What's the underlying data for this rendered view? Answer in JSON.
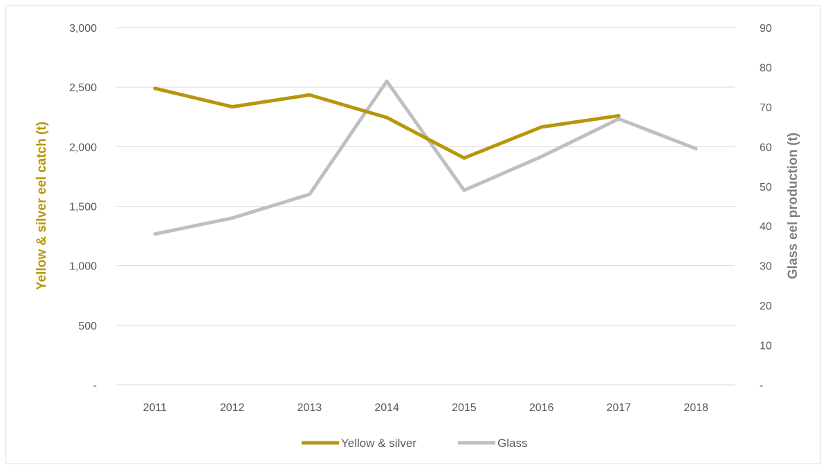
{
  "chart_data": {
    "type": "line",
    "categories": [
      "2011",
      "2012",
      "2013",
      "2014",
      "2015",
      "2016",
      "2017",
      "2018"
    ],
    "series": [
      {
        "name": "Yellow & silver",
        "axis": "left",
        "color": "#b8960c",
        "values": [
          2490,
          2335,
          2435,
          2245,
          1905,
          2165,
          2260,
          null
        ]
      },
      {
        "name": "Glass",
        "axis": "right",
        "color": "#bfbfbf",
        "values": [
          38,
          42,
          48,
          76.5,
          49,
          57.5,
          67,
          59.5
        ]
      }
    ],
    "y_left": {
      "label": "Yellow & silver eel catch (t)",
      "color": "#b8960c",
      "ticks": [
        0,
        500,
        1000,
        1500,
        2000,
        2500,
        3000
      ],
      "tick_labels": [
        "-",
        "500",
        "1,000",
        "1,500",
        "2,000",
        "2,500",
        "3,000"
      ],
      "ylim": [
        0,
        3000
      ]
    },
    "y_right": {
      "label": "Glass eel production (t)",
      "color": "#7f7f7f",
      "ticks": [
        0,
        10,
        20,
        30,
        40,
        50,
        60,
        70,
        80,
        90
      ],
      "tick_labels": [
        "-",
        "10",
        "20",
        "30",
        "40",
        "50",
        "60",
        "70",
        "80",
        "90"
      ],
      "ylim": [
        0,
        90
      ]
    },
    "grid": true,
    "gridline_color": "#d9d9d9",
    "legend_position": "bottom"
  }
}
